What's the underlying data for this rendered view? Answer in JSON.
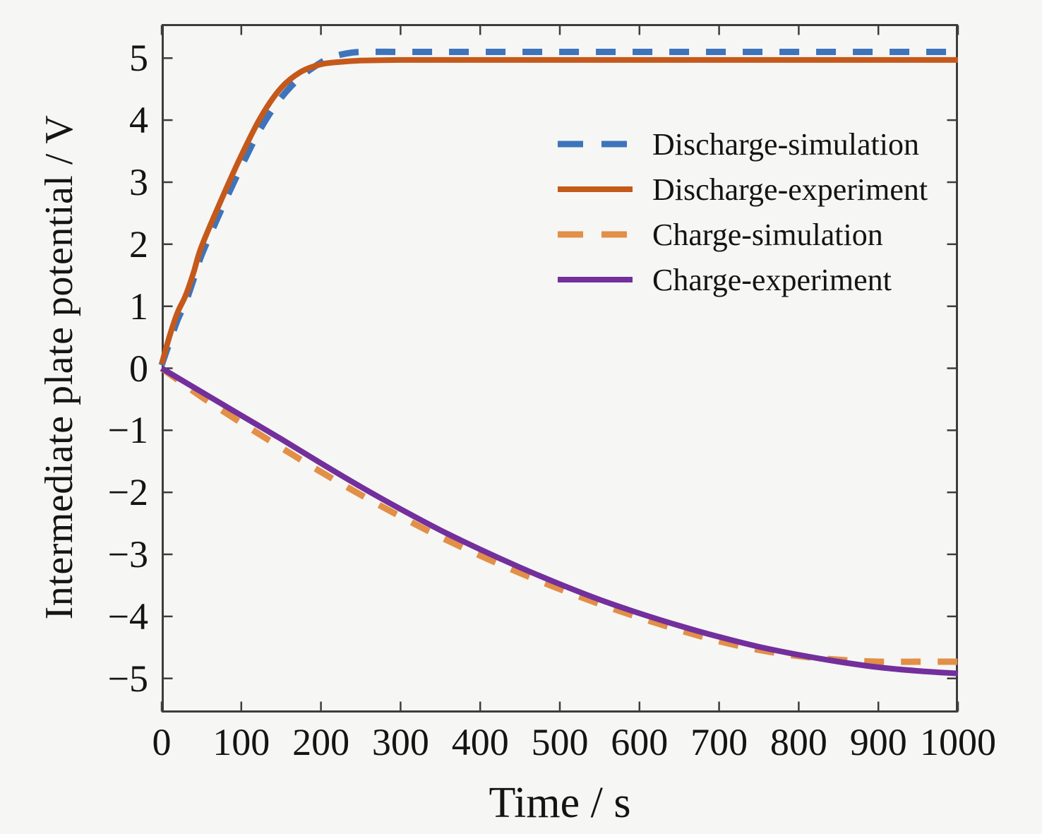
{
  "figure": {
    "background": "#f6f6f4",
    "axis_color": "#3d3d3d",
    "text_color": "#141414"
  },
  "chart_data": {
    "type": "line",
    "title": "",
    "xlabel": "Time / s",
    "ylabel": "Intermediate plate potential / V",
    "xlim": [
      0,
      1000
    ],
    "ylim": [
      -5.55,
      5.55
    ],
    "grid": false,
    "legend_position": "upper-right-inside",
    "box": true,
    "tick_direction": "in",
    "x_ticks": [
      {
        "value": 0,
        "label": "0"
      },
      {
        "value": 100,
        "label": "100"
      },
      {
        "value": 200,
        "label": "200"
      },
      {
        "value": 300,
        "label": "300"
      },
      {
        "value": 400,
        "label": "400"
      },
      {
        "value": 500,
        "label": "500"
      },
      {
        "value": 600,
        "label": "600"
      },
      {
        "value": 700,
        "label": "700"
      },
      {
        "value": 800,
        "label": "800"
      },
      {
        "value": 900,
        "label": "900"
      },
      {
        "value": 1000,
        "label": "1000"
      }
    ],
    "y_ticks": [
      {
        "value": 5,
        "label": "5"
      },
      {
        "value": 4,
        "label": "4"
      },
      {
        "value": 3,
        "label": "3"
      },
      {
        "value": 2,
        "label": "2"
      },
      {
        "value": 1,
        "label": "1"
      },
      {
        "value": 0,
        "label": "0"
      },
      {
        "value": -1,
        "label": "−1"
      },
      {
        "value": -2,
        "label": "−2"
      },
      {
        "value": -3,
        "label": "−3"
      },
      {
        "value": -4,
        "label": "−4"
      },
      {
        "value": -5,
        "label": "−5"
      }
    ],
    "series": [
      {
        "name": "Discharge-simulation",
        "slug": "discharge-simulation",
        "color": "#3e74bc",
        "line_style": "dashed",
        "line_width": 9,
        "x": [
          0,
          10,
          20,
          30,
          40,
          50,
          75,
          100,
          125,
          150,
          175,
          200,
          215,
          230,
          250,
          300,
          350,
          400,
          450,
          500,
          550,
          600,
          650,
          700,
          750,
          800,
          850,
          900,
          950,
          1000
        ],
        "y": [
          0.05,
          0.42,
          0.78,
          1.06,
          1.43,
          1.82,
          2.56,
          3.25,
          3.88,
          4.36,
          4.7,
          4.93,
          5.02,
          5.07,
          5.1,
          5.1,
          5.1,
          5.1,
          5.1,
          5.1,
          5.1,
          5.1,
          5.1,
          5.1,
          5.1,
          5.1,
          5.1,
          5.1,
          5.1,
          5.1
        ]
      },
      {
        "name": "Discharge-experiment",
        "slug": "discharge-experiment",
        "color": "#c4591b",
        "line_style": "solid",
        "line_width": 8,
        "x": [
          0,
          10,
          20,
          30,
          40,
          50,
          75,
          100,
          125,
          150,
          175,
          200,
          225,
          250,
          300,
          350,
          400,
          450,
          500,
          550,
          600,
          650,
          700,
          750,
          800,
          850,
          900,
          950,
          1000
        ],
        "y": [
          0.07,
          0.52,
          0.9,
          1.17,
          1.54,
          1.96,
          2.72,
          3.43,
          4.06,
          4.52,
          4.78,
          4.9,
          4.94,
          4.96,
          4.97,
          4.97,
          4.97,
          4.97,
          4.97,
          4.97,
          4.97,
          4.97,
          4.97,
          4.97,
          4.97,
          4.97,
          4.97,
          4.97,
          4.97
        ]
      },
      {
        "name": "Charge-simulation",
        "slug": "charge-simulation",
        "color": "#e28f47",
        "line_style": "dashed",
        "line_width": 9,
        "x": [
          0,
          50,
          100,
          150,
          200,
          250,
          300,
          350,
          400,
          450,
          500,
          550,
          600,
          650,
          700,
          750,
          800,
          850,
          900,
          950,
          1000
        ],
        "y": [
          0,
          -0.46,
          -0.88,
          -1.28,
          -1.67,
          -2.04,
          -2.39,
          -2.72,
          -3.02,
          -3.3,
          -3.56,
          -3.8,
          -4.02,
          -4.22,
          -4.4,
          -4.54,
          -4.64,
          -4.7,
          -4.73,
          -4.73,
          -4.73
        ]
      },
      {
        "name": "Charge-experiment",
        "slug": "charge-experiment",
        "color": "#732f9c",
        "line_style": "solid",
        "line_width": 8,
        "x": [
          0,
          50,
          100,
          150,
          200,
          250,
          300,
          350,
          400,
          450,
          500,
          550,
          600,
          650,
          700,
          750,
          800,
          850,
          900,
          950,
          1000
        ],
        "y": [
          0,
          -0.38,
          -0.76,
          -1.14,
          -1.53,
          -1.91,
          -2.27,
          -2.61,
          -2.92,
          -3.21,
          -3.48,
          -3.73,
          -3.95,
          -4.15,
          -4.33,
          -4.49,
          -4.62,
          -4.73,
          -4.82,
          -4.88,
          -4.92
        ]
      }
    ]
  }
}
